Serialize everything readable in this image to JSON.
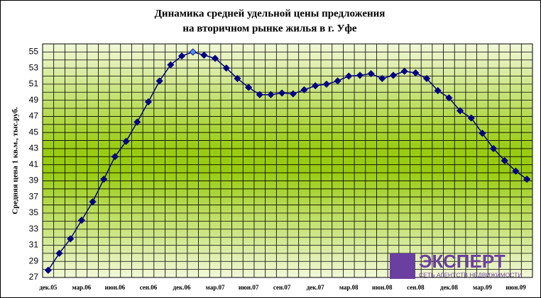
{
  "chart_data": {
    "type": "line",
    "title": [
      "Динамика средней удельной цены предложения",
      "на вторичном рынке жилья в г. Уфе"
    ],
    "y_label": "Средняя цена 1 кв.м., тыс.руб.",
    "categories": [
      "дек.05",
      null,
      null,
      "мар.06",
      null,
      null,
      "июн.06",
      null,
      null,
      "сен.06",
      null,
      null,
      "дек.06",
      null,
      null,
      "мар.07",
      null,
      null,
      "июн.07",
      null,
      null,
      "сен.07",
      null,
      null,
      "дек.07",
      null,
      null,
      "мар.08",
      null,
      null,
      "июн.08",
      null,
      null,
      "сен.08",
      null,
      null,
      "дек.08",
      null,
      null,
      "мар.09",
      null,
      null,
      "июн.09",
      null
    ],
    "series": [
      {
        "name": "Средняя цена",
        "color": "#000080",
        "values": [
          27.9,
          30.0,
          31.8,
          34.1,
          36.4,
          39.2,
          42.0,
          43.9,
          46.3,
          48.8,
          51.4,
          53.4,
          54.5,
          55.0,
          54.6,
          54.2,
          53.0,
          51.7,
          50.6,
          49.7,
          49.7,
          49.9,
          49.8,
          50.3,
          50.8,
          51.0,
          51.4,
          52.0,
          52.1,
          52.3,
          51.7,
          52.1,
          52.6,
          52.4,
          51.7,
          50.2,
          49.3,
          47.7,
          46.8,
          44.9,
          43.0,
          41.5,
          40.2,
          39.2
        ]
      }
    ],
    "highlight": {
      "index": 13,
      "color": "#4f8fe6"
    },
    "ylim": [
      27,
      56
    ],
    "yticks": [
      27,
      29,
      31,
      33,
      35,
      37,
      39,
      41,
      43,
      45,
      47,
      49,
      51,
      53,
      55
    ],
    "grid": true,
    "minor_grid": true,
    "logo": {
      "name": "ЭКСПЕРТ",
      "tagline": "СЕТЬ АГЕНТСТВ НЕДВИЖИМОСТИ",
      "color": "#6b3fa0"
    }
  }
}
